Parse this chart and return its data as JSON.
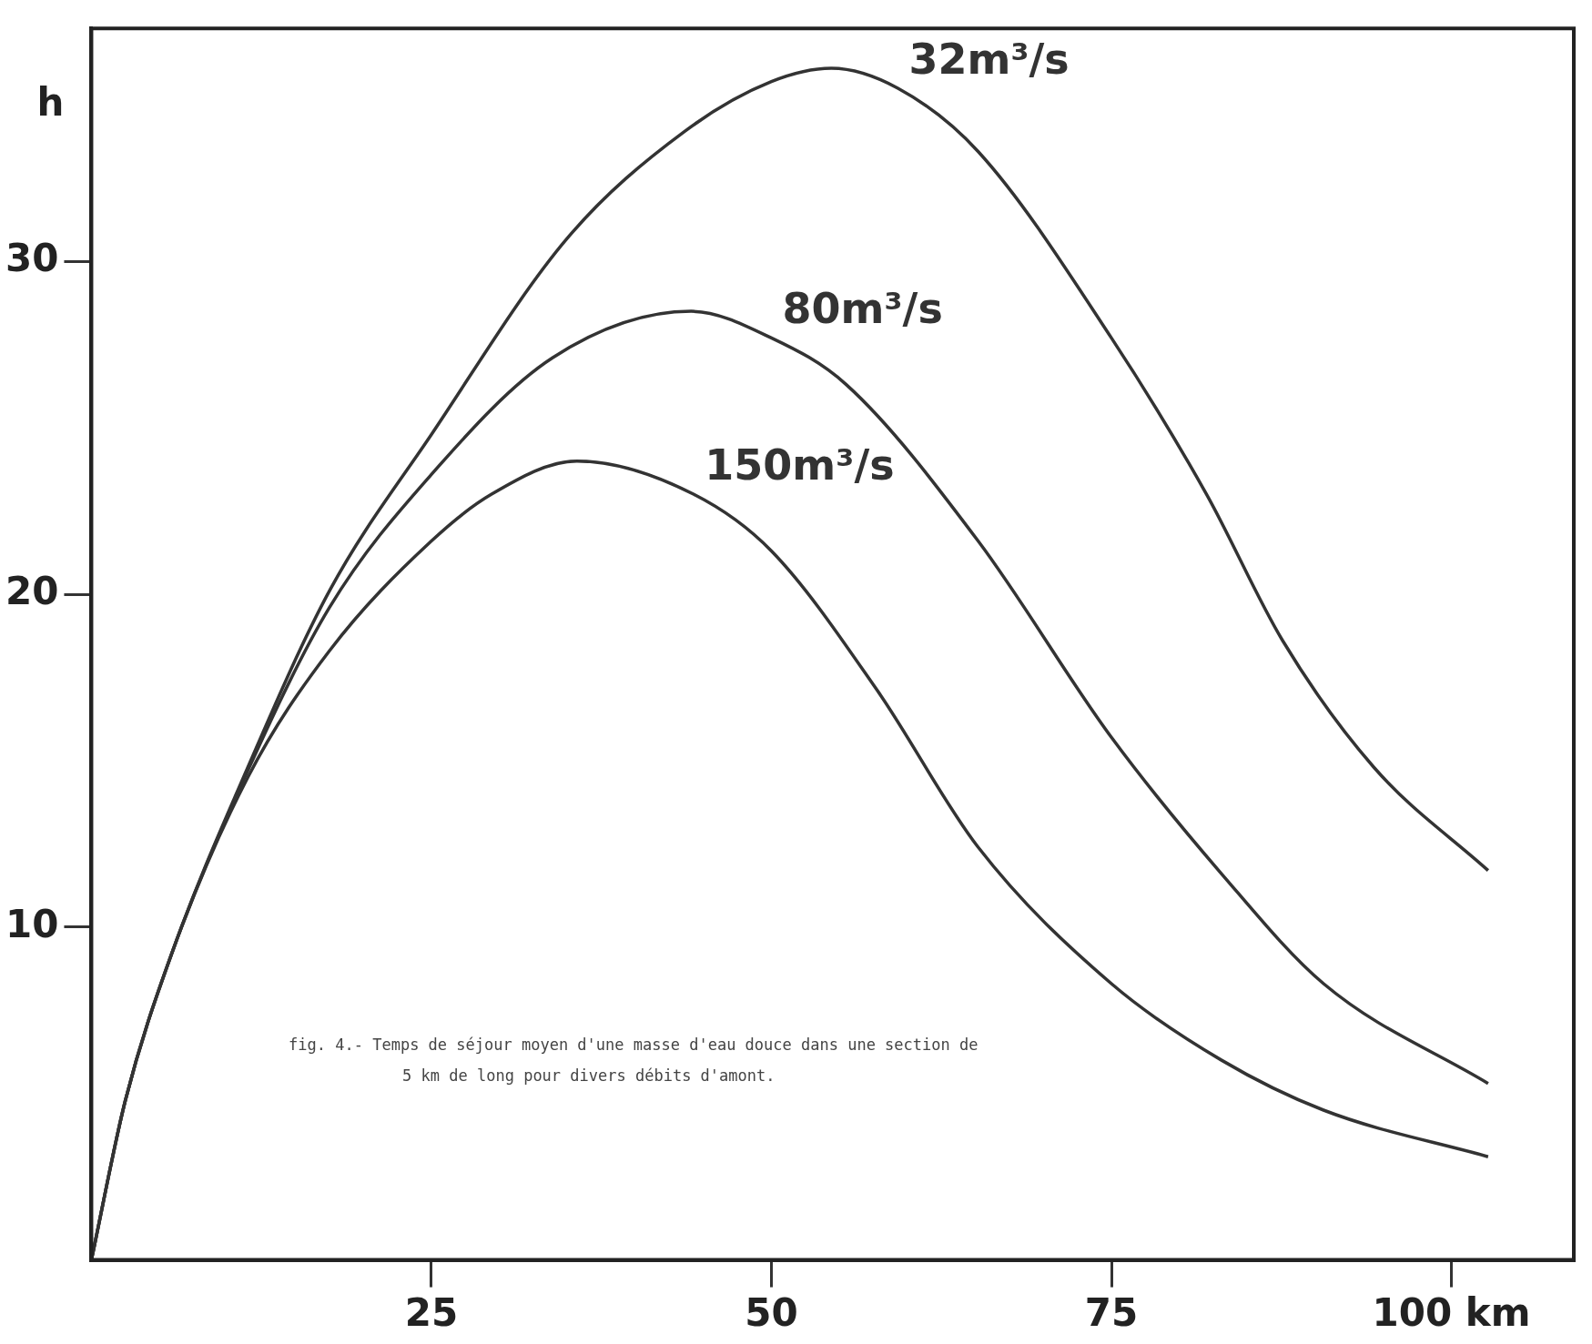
{
  "chart_data": {
    "type": "line",
    "ylabel": "h",
    "xlim": [
      0,
      109
    ],
    "ylim": [
      0,
      37
    ],
    "xticks": [
      25,
      50,
      75,
      {
        "value": 100,
        "label": "100 km"
      }
    ],
    "yticks": [
      10,
      20,
      30
    ],
    "grid": false,
    "legend": false,
    "marker": "none",
    "line_style": "solid",
    "series": [
      {
        "name": "32m³/s",
        "color": "#333333",
        "x": [
          0,
          2.5,
          5.9,
          11.5,
          17.5,
          25,
          35,
          43.6,
          50,
          54.4,
          59.3,
          65.2,
          75,
          82,
          87.6,
          94.3,
          102.7
        ],
        "values": [
          0,
          4.8,
          9.2,
          14.8,
          20.1,
          24.8,
          30.7,
          33.9,
          35.4,
          35.8,
          35.2,
          33.3,
          27.7,
          23.0,
          18.6,
          14.8,
          11.7
        ]
      },
      {
        "name": "80m³/s",
        "color": "#333333",
        "x": [
          0,
          2.5,
          5.9,
          11.5,
          17.5,
          25,
          33.9,
          44.1,
          50,
          55.5,
          65.2,
          75,
          83.1,
          90.6,
          102.7
        ],
        "values": [
          0,
          4.8,
          9.2,
          14.7,
          19.6,
          23.6,
          27.1,
          28.5,
          27.7,
          26.3,
          21.6,
          15.7,
          11.6,
          8.3,
          5.3
        ]
      },
      {
        "name": "150m³/s",
        "color": "#333333",
        "x": [
          0,
          2.5,
          5.9,
          11.5,
          17.5,
          25,
          29.4,
          35.7,
          44.3,
          50,
          57.8,
          65.2,
          75,
          83.1,
          90.6,
          102.7
        ],
        "values": [
          0,
          4.8,
          9.2,
          14.5,
          18.3,
          21.6,
          23.0,
          24.0,
          23.0,
          21.3,
          17.1,
          12.4,
          8.3,
          6.0,
          4.5,
          3.1
        ]
      }
    ],
    "annotations": [
      "fig. 4.- Temps de séjour moyen d'une masse d'eau douce dans une section de 5 km de long pour divers débits d'amont."
    ]
  }
}
